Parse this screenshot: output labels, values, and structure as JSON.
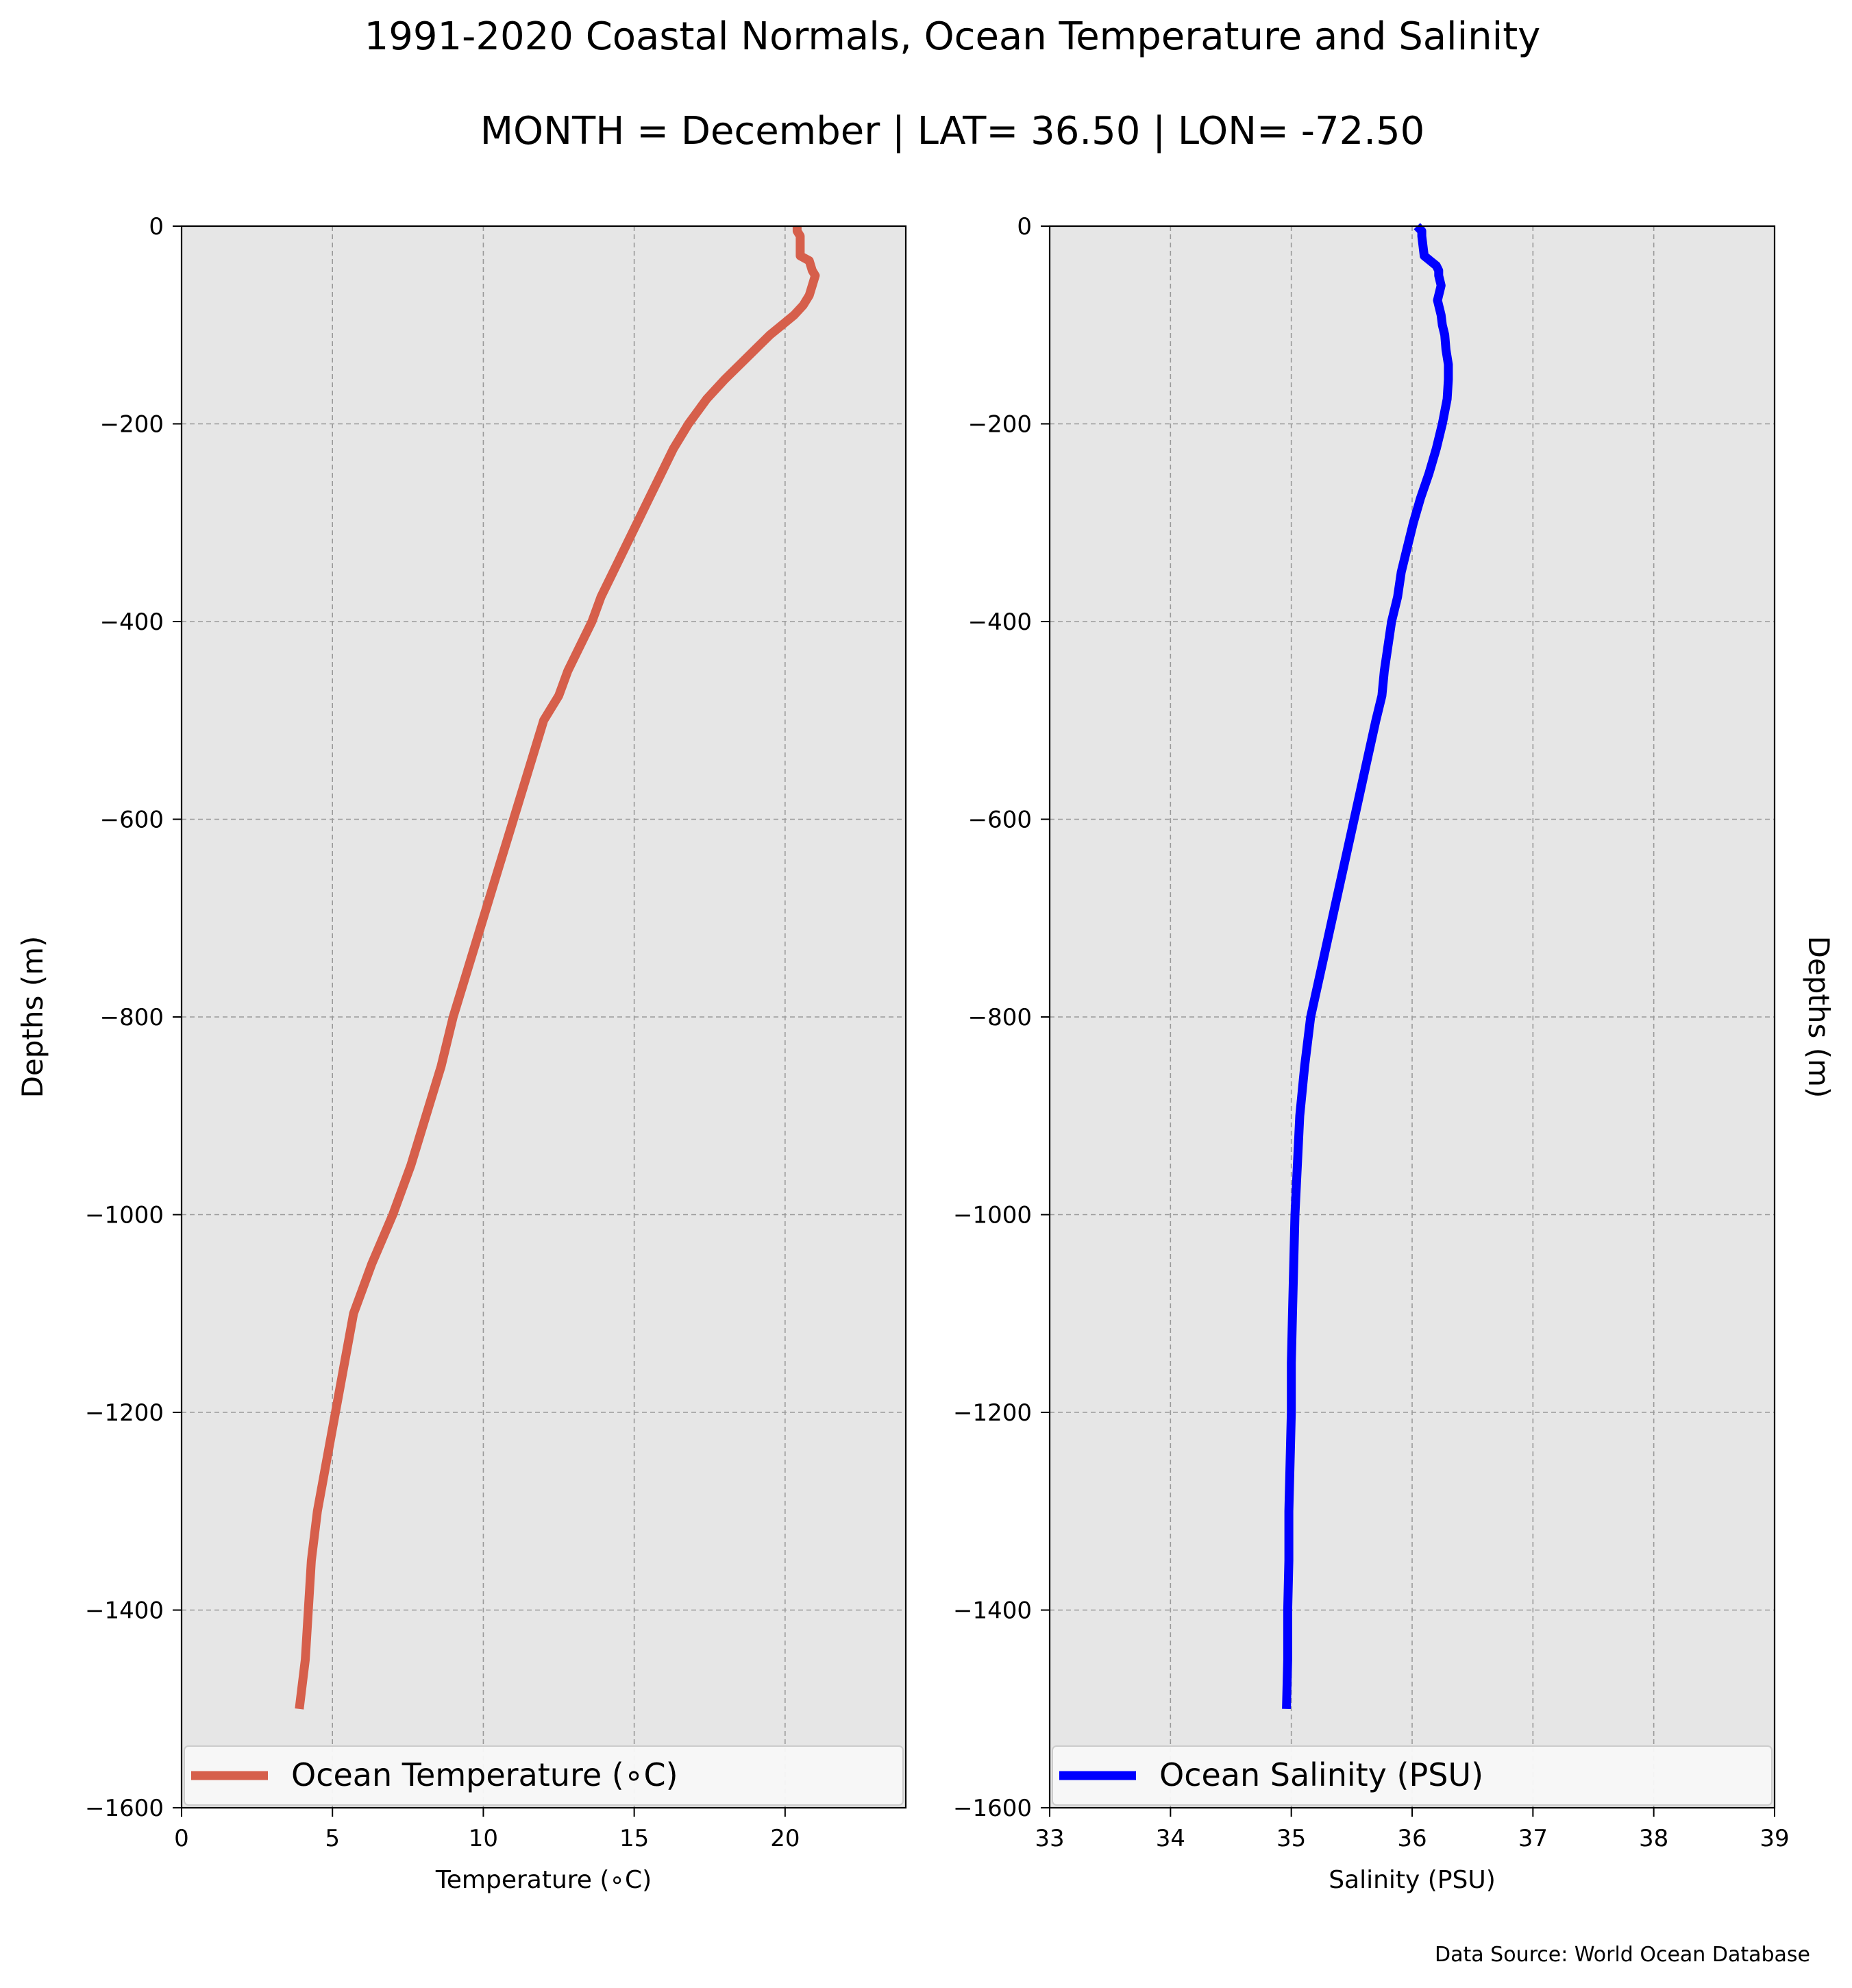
{
  "figure": {
    "title_line1": "1991-2020 Coastal Normals, Ocean Temperature and Salinity",
    "title_line2": "MONTH = December | LAT= 36.50 | LON= -72.50",
    "source": "Data Source: World Ocean Database"
  },
  "chart_data": [
    {
      "type": "line",
      "xlabel": "Temperature (∘C)",
      "ylabel": "Depths (m)",
      "xlim": [
        0,
        24
      ],
      "ylim": [
        -1600,
        0
      ],
      "xticks": [
        0,
        5,
        10,
        15,
        20
      ],
      "yticks": [
        0,
        -200,
        -400,
        -600,
        -800,
        -1000,
        -1200,
        -1400,
        -1600
      ],
      "ytick_labels": [
        "0",
        "−200",
        "−400",
        "−600",
        "−800",
        "−1000",
        "−1200",
        "−1400",
        "−1600"
      ],
      "grid": true,
      "legend_position": "bottom",
      "colors": {
        "background": "#e6e6e6",
        "grid": "#9a9a9a",
        "line": "#d65f4b"
      },
      "series": [
        {
          "name": "Ocean Temperature (∘C)",
          "color": "#d65f4b",
          "x": [
            20.4,
            20.4,
            20.5,
            20.5,
            20.8,
            20.9,
            21.0,
            20.9,
            20.8,
            20.6,
            20.3,
            19.9,
            19.5,
            19.0,
            18.5,
            18.0,
            17.4,
            16.8,
            16.3,
            15.9,
            15.5,
            15.1,
            14.7,
            14.3,
            13.9,
            13.6,
            13.2,
            12.8,
            12.5,
            12.0,
            11.5,
            11.0,
            10.5,
            10.0,
            9.5,
            9.0,
            8.6,
            8.1,
            7.6,
            7.0,
            6.3,
            5.7,
            5.4,
            5.1,
            4.8,
            4.5,
            4.3,
            4.2,
            4.1,
            3.9
          ],
          "y": [
            0,
            -5,
            -10,
            -30,
            -35,
            -45,
            -50,
            -60,
            -70,
            -80,
            -90,
            -100,
            -110,
            -125,
            -140,
            -155,
            -175,
            -200,
            -225,
            -250,
            -275,
            -300,
            -325,
            -350,
            -375,
            -400,
            -425,
            -450,
            -475,
            -500,
            -550,
            -600,
            -650,
            -700,
            -750,
            -800,
            -850,
            -900,
            -950,
            -1000,
            -1050,
            -1100,
            -1150,
            -1200,
            -1250,
            -1300,
            -1350,
            -1400,
            -1450,
            -1500
          ]
        }
      ]
    },
    {
      "type": "line",
      "xlabel": "Salinity (PSU)",
      "ylabel": "Depths (m)",
      "xlim": [
        33,
        39
      ],
      "ylim": [
        -1600,
        0
      ],
      "xticks": [
        33,
        34,
        35,
        36,
        37,
        38,
        39
      ],
      "yticks": [
        0,
        -200,
        -400,
        -600,
        -800,
        -1000,
        -1200,
        -1400,
        -1600
      ],
      "ytick_labels": [
        "0",
        "−200",
        "−400",
        "−600",
        "−800",
        "−1000",
        "−1200",
        "−1400",
        "−1600"
      ],
      "grid": true,
      "legend_position": "bottom",
      "colors": {
        "background": "#e6e6e6",
        "grid": "#9a9a9a",
        "line": "#0000ff"
      },
      "series": [
        {
          "name": "Ocean Salinity (PSU)",
          "color": "#0000ff",
          "x": [
            36.04,
            36.08,
            36.08,
            36.1,
            36.15,
            36.2,
            36.22,
            36.22,
            36.24,
            36.21,
            36.24,
            36.25,
            36.27,
            36.28,
            36.3,
            36.3,
            36.29,
            36.25,
            36.2,
            36.14,
            36.07,
            36.01,
            35.96,
            35.91,
            35.88,
            35.83,
            35.8,
            35.77,
            35.75,
            35.7,
            35.61,
            35.52,
            35.43,
            35.34,
            35.25,
            35.16,
            35.11,
            35.07,
            35.05,
            35.03,
            35.02,
            35.01,
            35.0,
            35.0,
            34.99,
            34.98,
            34.98,
            34.97,
            34.97,
            34.96
          ],
          "y": [
            0,
            -5,
            -10,
            -30,
            -35,
            -40,
            -45,
            -50,
            -60,
            -75,
            -90,
            -100,
            -110,
            -125,
            -140,
            -155,
            -175,
            -200,
            -225,
            -250,
            -275,
            -300,
            -325,
            -350,
            -375,
            -400,
            -425,
            -450,
            -475,
            -500,
            -550,
            -600,
            -650,
            -700,
            -750,
            -800,
            -850,
            -900,
            -950,
            -1000,
            -1050,
            -1100,
            -1150,
            -1200,
            -1250,
            -1300,
            -1350,
            -1400,
            -1450,
            -1500
          ]
        }
      ]
    }
  ]
}
